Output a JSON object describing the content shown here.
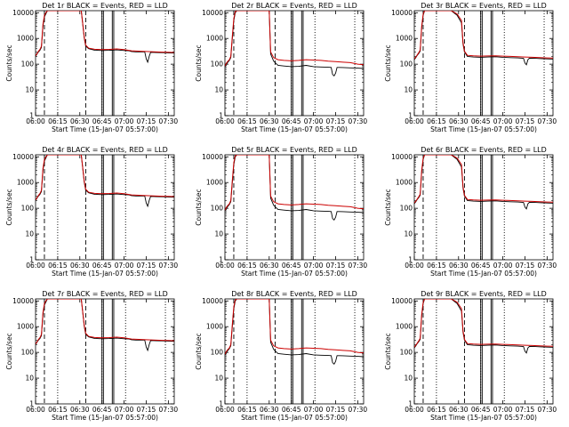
{
  "figure": {
    "background": "#ffffff",
    "colors": {
      "events": "#000000",
      "lld": "#cc0000"
    },
    "panels": [
      {
        "title": "Det 1r BLACK = Events, RED = LLD",
        "profile": 0
      },
      {
        "title": "Det 2r BLACK = Events, RED = LLD",
        "profile": 1
      },
      {
        "title": "Det 3r BLACK = Events, RED = LLD",
        "profile": 2
      },
      {
        "title": "Det 4r BLACK = Events, RED = LLD",
        "profile": 0
      },
      {
        "title": "Det 5r BLACK = Events, RED = LLD",
        "profile": 1
      },
      {
        "title": "Det 6r BLACK = Events, RED = LLD",
        "profile": 2
      },
      {
        "title": "Det 7r BLACK = Events, RED = LLD",
        "profile": 0
      },
      {
        "title": "Det 8r BLACK = Events, RED = LLD",
        "profile": 1
      },
      {
        "title": "Det 9r BLACK = Events, RED = LLD",
        "profile": 2
      }
    ],
    "ylabel": "Counts/sec",
    "xlabel": "Start Time (15-Jan-07 05:57:00)",
    "xticks": [
      "06:00",
      "06:15",
      "06:30",
      "06:45",
      "07:00",
      "07:15",
      "07:30"
    ],
    "yticks": [
      "1",
      "10",
      "100",
      "1000",
      "10000"
    ]
  },
  "chart_data": {
    "type": "line",
    "scale_y": "log",
    "x_unit": "minutes after 06:00",
    "xlim": [
      0,
      94
    ],
    "ylim": [
      1,
      12000
    ],
    "dashed_lines_x": [
      6,
      34
    ],
    "dotted_lines_x": [
      15,
      45,
      61,
      88
    ],
    "solid_lines_x": [
      45,
      46,
      52,
      53
    ],
    "profiles": [
      {
        "events": [
          [
            0,
            200
          ],
          [
            1,
            250
          ],
          [
            2,
            300
          ],
          [
            3,
            350
          ],
          [
            4,
            450
          ],
          [
            5,
            3000
          ],
          [
            6,
            7000
          ],
          [
            7,
            9000
          ],
          [
            8,
            12000
          ],
          [
            31,
            12000
          ],
          [
            33,
            1000
          ],
          [
            34,
            500
          ],
          [
            36,
            400
          ],
          [
            40,
            350
          ],
          [
            45,
            340
          ],
          [
            50,
            345
          ],
          [
            55,
            360
          ],
          [
            60,
            340
          ],
          [
            63,
            335
          ],
          [
            65,
            310
          ],
          [
            68,
            300
          ],
          [
            72,
            300
          ],
          [
            74,
            300
          ],
          [
            75,
            160
          ],
          [
            76,
            120
          ],
          [
            77,
            200
          ],
          [
            78,
            290
          ],
          [
            82,
            285
          ],
          [
            86,
            280
          ],
          [
            90,
            275
          ],
          [
            94,
            270
          ]
        ],
        "lld": [
          [
            0,
            210
          ],
          [
            1,
            260
          ],
          [
            2,
            320
          ],
          [
            3,
            380
          ],
          [
            4,
            500
          ],
          [
            5,
            3500
          ],
          [
            6,
            8000
          ],
          [
            7,
            10000
          ],
          [
            8,
            12000
          ],
          [
            31,
            12000
          ],
          [
            33,
            1100
          ],
          [
            34,
            550
          ],
          [
            36,
            420
          ],
          [
            40,
            380
          ],
          [
            45,
            370
          ],
          [
            50,
            375
          ],
          [
            55,
            390
          ],
          [
            60,
            370
          ],
          [
            65,
            330
          ],
          [
            70,
            320
          ],
          [
            75,
            310
          ],
          [
            80,
            300
          ],
          [
            86,
            295
          ],
          [
            90,
            290
          ],
          [
            94,
            285
          ]
        ]
      },
      {
        "events": [
          [
            0,
            80
          ],
          [
            1,
            100
          ],
          [
            2,
            120
          ],
          [
            3,
            140
          ],
          [
            4,
            180
          ],
          [
            5,
            1000
          ],
          [
            6,
            5000
          ],
          [
            7,
            10000
          ],
          [
            8,
            12000
          ],
          [
            30,
            12000
          ],
          [
            31,
            250
          ],
          [
            33,
            130
          ],
          [
            36,
            90
          ],
          [
            40,
            85
          ],
          [
            45,
            80
          ],
          [
            50,
            82
          ],
          [
            55,
            90
          ],
          [
            60,
            80
          ],
          [
            65,
            78
          ],
          [
            70,
            76
          ],
          [
            72,
            75
          ],
          [
            73,
            40
          ],
          [
            74,
            35
          ],
          [
            75,
            45
          ],
          [
            76,
            75
          ],
          [
            80,
            74
          ],
          [
            85,
            72
          ],
          [
            90,
            70
          ],
          [
            94,
            68
          ]
        ],
        "lld": [
          [
            0,
            85
          ],
          [
            1,
            110
          ],
          [
            2,
            130
          ],
          [
            3,
            150
          ],
          [
            4,
            200
          ],
          [
            5,
            1200
          ],
          [
            6,
            6000
          ],
          [
            7,
            11000
          ],
          [
            8,
            12000
          ],
          [
            30,
            12000
          ],
          [
            31,
            300
          ],
          [
            33,
            180
          ],
          [
            36,
            150
          ],
          [
            40,
            140
          ],
          [
            45,
            135
          ],
          [
            50,
            140
          ],
          [
            55,
            150
          ],
          [
            60,
            145
          ],
          [
            65,
            140
          ],
          [
            70,
            130
          ],
          [
            75,
            125
          ],
          [
            80,
            120
          ],
          [
            85,
            115
          ],
          [
            90,
            100
          ],
          [
            94,
            95
          ]
        ]
      },
      {
        "events": [
          [
            0,
            150
          ],
          [
            1,
            180
          ],
          [
            2,
            220
          ],
          [
            3,
            260
          ],
          [
            4,
            320
          ],
          [
            5,
            2500
          ],
          [
            6,
            8000
          ],
          [
            7,
            12000
          ],
          [
            25,
            12000
          ],
          [
            29,
            8000
          ],
          [
            32,
            4000
          ],
          [
            33,
            600
          ],
          [
            34,
            300
          ],
          [
            36,
            200
          ],
          [
            40,
            190
          ],
          [
            45,
            185
          ],
          [
            50,
            190
          ],
          [
            55,
            195
          ],
          [
            60,
            185
          ],
          [
            65,
            180
          ],
          [
            70,
            175
          ],
          [
            74,
            170
          ],
          [
            75,
            110
          ],
          [
            76,
            95
          ],
          [
            77,
            150
          ],
          [
            78,
            170
          ],
          [
            82,
            168
          ],
          [
            86,
            165
          ],
          [
            90,
            160
          ],
          [
            94,
            158
          ]
        ],
        "lld": [
          [
            0,
            160
          ],
          [
            1,
            190
          ],
          [
            2,
            230
          ],
          [
            3,
            280
          ],
          [
            4,
            350
          ],
          [
            5,
            3000
          ],
          [
            6,
            9000
          ],
          [
            7,
            12000
          ],
          [
            25,
            12000
          ],
          [
            29,
            9000
          ],
          [
            32,
            5000
          ],
          [
            33,
            700
          ],
          [
            34,
            320
          ],
          [
            36,
            220
          ],
          [
            40,
            210
          ],
          [
            45,
            205
          ],
          [
            50,
            208
          ],
          [
            55,
            210
          ],
          [
            60,
            205
          ],
          [
            65,
            200
          ],
          [
            70,
            195
          ],
          [
            75,
            190
          ],
          [
            80,
            185
          ],
          [
            85,
            180
          ],
          [
            90,
            175
          ],
          [
            94,
            172
          ]
        ]
      }
    ]
  }
}
